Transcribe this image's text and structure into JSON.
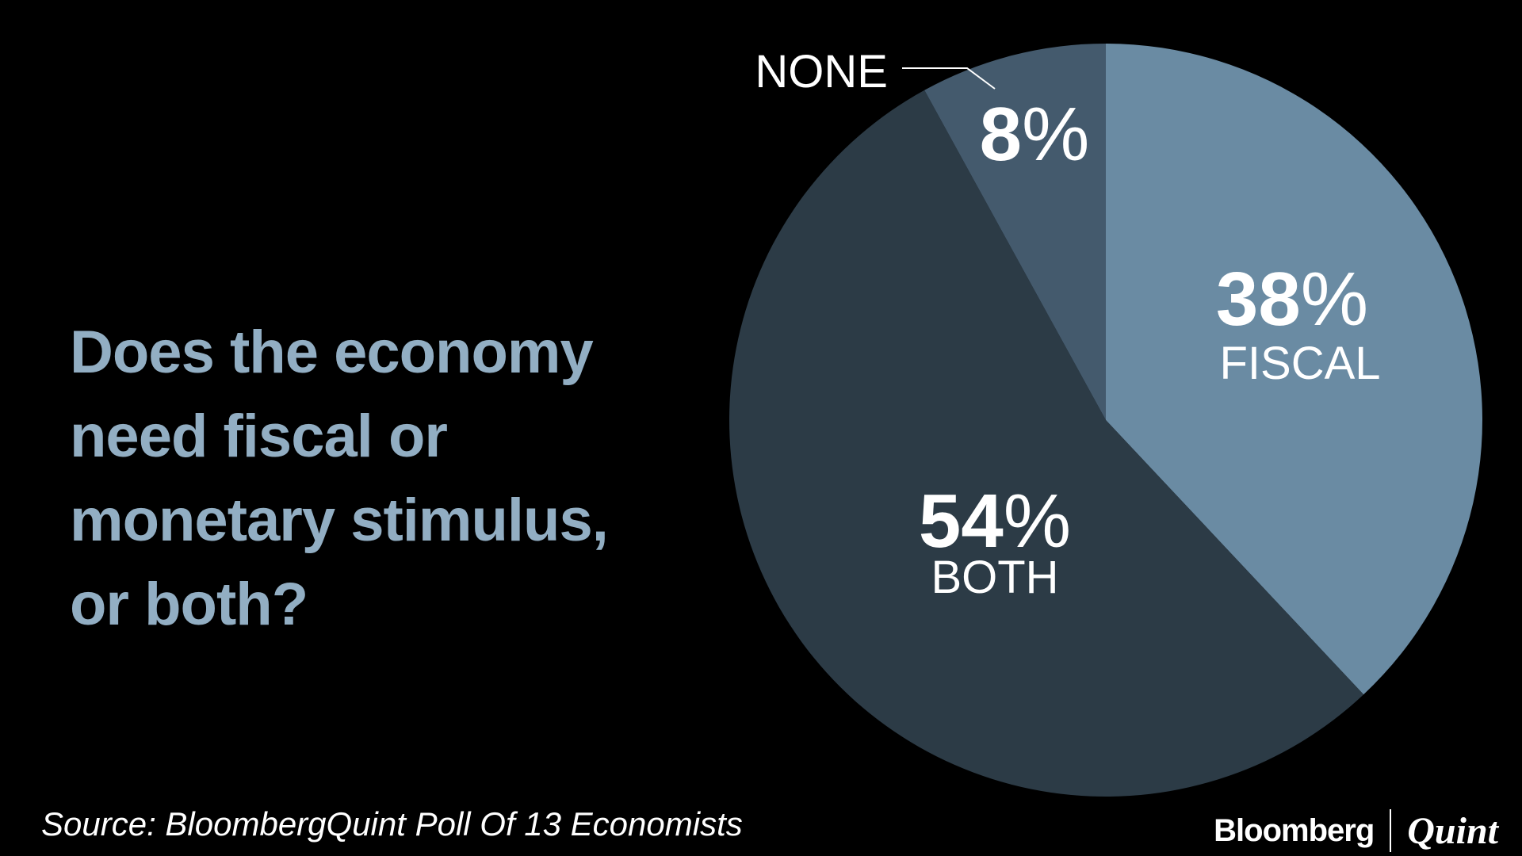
{
  "question": {
    "lines": [
      "Does the economy",
      "need fiscal or",
      "monetary stimulus,",
      "or both?"
    ],
    "color": "#92aec3"
  },
  "source": "Source: BloombergQuint Poll Of 13 Economists",
  "logo": {
    "left": "Bloomberg",
    "right": "Quint"
  },
  "chart_data": {
    "type": "pie",
    "title": "",
    "start_angle_deg": 0,
    "direction": "clockwise",
    "slices": [
      {
        "label": "FISCAL",
        "value": 38,
        "value_label": "38",
        "unit": "%",
        "color": "#6a8ba3"
      },
      {
        "label": "BOTH",
        "value": 54,
        "value_label": "54",
        "unit": "%",
        "color": "#2c3b46"
      },
      {
        "label": "NONE",
        "value": 8,
        "value_label": "8",
        "unit": "%",
        "color": "#445a6d"
      }
    ]
  }
}
